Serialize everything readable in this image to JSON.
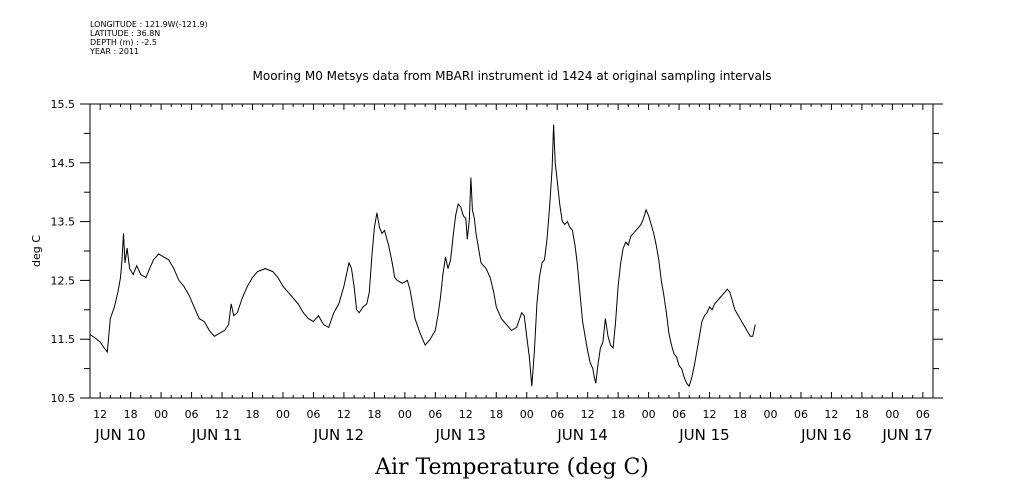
{
  "meta": {
    "longitude": "LONGITUDE : 121.9W(-121.9)",
    "latitude": "LATITUDE : 36.8N",
    "depth": "DEPTH (m) : -2.5",
    "year": "YEAR : 2011"
  },
  "chart_data": {
    "type": "line",
    "title": "Mooring M0 Metsys data from MBARI instrument id 1424 at original sampling intervals",
    "xlabel": "Air Temperature (deg C)",
    "ylabel": "deg C",
    "ylim": [
      10.5,
      15.5
    ],
    "yticks": [
      "10.5",
      "11.5",
      "12.5",
      "13.5",
      "14.5",
      "15.5"
    ],
    "x_unit": "hours since 2011-06-10 00:00",
    "xlim": [
      10,
      176
    ],
    "hour_ticks": [
      {
        "t": 12,
        "label": "12"
      },
      {
        "t": 18,
        "label": "18"
      },
      {
        "t": 24,
        "label": "00"
      },
      {
        "t": 30,
        "label": "06"
      },
      {
        "t": 36,
        "label": "12"
      },
      {
        "t": 42,
        "label": "18"
      },
      {
        "t": 48,
        "label": "00"
      },
      {
        "t": 54,
        "label": "06"
      },
      {
        "t": 60,
        "label": "12"
      },
      {
        "t": 66,
        "label": "18"
      },
      {
        "t": 72,
        "label": "00"
      },
      {
        "t": 78,
        "label": "06"
      },
      {
        "t": 84,
        "label": "12"
      },
      {
        "t": 90,
        "label": "18"
      },
      {
        "t": 96,
        "label": "00"
      },
      {
        "t": 102,
        "label": "06"
      },
      {
        "t": 108,
        "label": "12"
      },
      {
        "t": 114,
        "label": "18"
      },
      {
        "t": 120,
        "label": "00"
      },
      {
        "t": 126,
        "label": "06"
      },
      {
        "t": 132,
        "label": "12"
      },
      {
        "t": 138,
        "label": "18"
      },
      {
        "t": 144,
        "label": "00"
      },
      {
        "t": 150,
        "label": "06"
      },
      {
        "t": 156,
        "label": "12"
      },
      {
        "t": 162,
        "label": "18"
      },
      {
        "t": 168,
        "label": "00"
      },
      {
        "t": 174,
        "label": "06"
      }
    ],
    "day_labels": [
      {
        "t": 16,
        "label": "JUN 10"
      },
      {
        "t": 35,
        "label": "JUN 11"
      },
      {
        "t": 59,
        "label": "JUN 12"
      },
      {
        "t": 83,
        "label": "JUN 13"
      },
      {
        "t": 107,
        "label": "JUN 14"
      },
      {
        "t": 131,
        "label": "JUN 15"
      },
      {
        "t": 155,
        "label": "JUN 16"
      },
      {
        "t": 171,
        "label": "JUN 17"
      }
    ],
    "series": [
      {
        "points": [
          [
            10.0,
            11.58
          ],
          [
            11.0,
            11.52
          ],
          [
            12.0,
            11.45
          ],
          [
            12.8,
            11.35
          ],
          [
            13.4,
            11.28
          ],
          [
            14.0,
            11.85
          ],
          [
            14.8,
            12.05
          ],
          [
            15.5,
            12.3
          ],
          [
            16.0,
            12.55
          ],
          [
            16.3,
            12.85
          ],
          [
            16.6,
            13.3
          ],
          [
            16.9,
            12.8
          ],
          [
            17.3,
            13.05
          ],
          [
            17.8,
            12.7
          ],
          [
            18.5,
            12.6
          ],
          [
            19.2,
            12.75
          ],
          [
            20.0,
            12.6
          ],
          [
            21.0,
            12.55
          ],
          [
            22.0,
            12.75
          ],
          [
            22.5,
            12.85
          ],
          [
            23.5,
            12.95
          ],
          [
            24.5,
            12.9
          ],
          [
            25.5,
            12.85
          ],
          [
            26.5,
            12.7
          ],
          [
            27.5,
            12.5
          ],
          [
            28.5,
            12.4
          ],
          [
            29.5,
            12.25
          ],
          [
            30.5,
            12.05
          ],
          [
            31.5,
            11.85
          ],
          [
            32.5,
            11.8
          ],
          [
            33.5,
            11.65
          ],
          [
            34.5,
            11.55
          ],
          [
            35.5,
            11.6
          ],
          [
            36.5,
            11.65
          ],
          [
            37.3,
            11.75
          ],
          [
            37.8,
            12.1
          ],
          [
            38.3,
            11.9
          ],
          [
            39.0,
            11.95
          ],
          [
            40.0,
            12.2
          ],
          [
            41.0,
            12.4
          ],
          [
            42.0,
            12.55
          ],
          [
            43.0,
            12.65
          ],
          [
            44.5,
            12.7
          ],
          [
            46.0,
            12.65
          ],
          [
            47.0,
            12.55
          ],
          [
            48.0,
            12.4
          ],
          [
            49.0,
            12.3
          ],
          [
            50.0,
            12.2
          ],
          [
            51.0,
            12.1
          ],
          [
            52.0,
            11.95
          ],
          [
            53.0,
            11.85
          ],
          [
            54.0,
            11.8
          ],
          [
            55.0,
            11.9
          ],
          [
            56.0,
            11.75
          ],
          [
            57.0,
            11.7
          ],
          [
            58.0,
            11.95
          ],
          [
            59.0,
            12.1
          ],
          [
            60.0,
            12.4
          ],
          [
            61.0,
            12.8
          ],
          [
            61.5,
            12.7
          ],
          [
            62.0,
            12.4
          ],
          [
            62.5,
            12.0
          ],
          [
            63.0,
            11.95
          ],
          [
            63.8,
            12.05
          ],
          [
            64.5,
            12.1
          ],
          [
            65.0,
            12.3
          ],
          [
            65.5,
            12.9
          ],
          [
            66.0,
            13.4
          ],
          [
            66.5,
            13.65
          ],
          [
            67.0,
            13.4
          ],
          [
            67.5,
            13.3
          ],
          [
            68.0,
            13.35
          ],
          [
            68.8,
            13.1
          ],
          [
            69.5,
            12.8
          ],
          [
            70.0,
            12.55
          ],
          [
            70.5,
            12.5
          ],
          [
            71.5,
            12.45
          ],
          [
            72.5,
            12.5
          ],
          [
            73.0,
            12.35
          ],
          [
            73.5,
            12.1
          ],
          [
            74.0,
            11.85
          ],
          [
            75.0,
            11.6
          ],
          [
            76.0,
            11.4
          ],
          [
            77.0,
            11.5
          ],
          [
            78.0,
            11.65
          ],
          [
            78.5,
            11.9
          ],
          [
            79.0,
            12.2
          ],
          [
            79.5,
            12.6
          ],
          [
            80.0,
            12.9
          ],
          [
            80.5,
            12.7
          ],
          [
            81.0,
            12.85
          ],
          [
            81.5,
            13.25
          ],
          [
            82.0,
            13.6
          ],
          [
            82.5,
            13.8
          ],
          [
            83.0,
            13.75
          ],
          [
            83.5,
            13.6
          ],
          [
            84.0,
            13.55
          ],
          [
            84.3,
            13.2
          ],
          [
            84.7,
            13.55
          ],
          [
            85.0,
            14.25
          ],
          [
            85.3,
            13.7
          ],
          [
            85.7,
            13.55
          ],
          [
            86.0,
            13.3
          ],
          [
            86.5,
            13.05
          ],
          [
            87.0,
            12.8
          ],
          [
            87.5,
            12.75
          ],
          [
            88.0,
            12.7
          ],
          [
            88.8,
            12.55
          ],
          [
            89.5,
            12.3
          ],
          [
            90.0,
            12.05
          ],
          [
            91.0,
            11.85
          ],
          [
            92.0,
            11.75
          ],
          [
            93.0,
            11.65
          ],
          [
            94.0,
            11.7
          ],
          [
            95.0,
            11.95
          ],
          [
            95.5,
            11.9
          ],
          [
            96.0,
            11.55
          ],
          [
            96.5,
            11.2
          ],
          [
            97.0,
            10.7
          ],
          [
            97.5,
            11.3
          ],
          [
            98.0,
            12.1
          ],
          [
            98.5,
            12.55
          ],
          [
            99.0,
            12.8
          ],
          [
            99.5,
            12.85
          ],
          [
            100.0,
            13.2
          ],
          [
            100.5,
            13.75
          ],
          [
            101.0,
            14.4
          ],
          [
            101.3,
            15.15
          ],
          [
            101.6,
            14.5
          ],
          [
            102.0,
            14.2
          ],
          [
            102.5,
            13.8
          ],
          [
            103.0,
            13.5
          ],
          [
            103.5,
            13.45
          ],
          [
            104.0,
            13.5
          ],
          [
            104.5,
            13.4
          ],
          [
            105.0,
            13.35
          ],
          [
            105.5,
            13.1
          ],
          [
            106.0,
            12.75
          ],
          [
            106.5,
            12.25
          ],
          [
            107.0,
            11.8
          ],
          [
            107.5,
            11.55
          ],
          [
            108.0,
            11.3
          ],
          [
            108.5,
            11.1
          ],
          [
            109.0,
            11.0
          ],
          [
            109.3,
            10.85
          ],
          [
            109.6,
            10.75
          ],
          [
            110.0,
            11.05
          ],
          [
            110.5,
            11.35
          ],
          [
            111.0,
            11.45
          ],
          [
            111.5,
            11.85
          ],
          [
            112.0,
            11.55
          ],
          [
            112.5,
            11.4
          ],
          [
            113.0,
            11.35
          ],
          [
            113.5,
            11.8
          ],
          [
            114.0,
            12.4
          ],
          [
            114.5,
            12.8
          ],
          [
            115.0,
            13.05
          ],
          [
            115.5,
            13.15
          ],
          [
            116.0,
            13.1
          ],
          [
            116.5,
            13.25
          ],
          [
            117.0,
            13.3
          ],
          [
            117.5,
            13.35
          ],
          [
            118.0,
            13.4
          ],
          [
            118.5,
            13.45
          ],
          [
            119.0,
            13.55
          ],
          [
            119.5,
            13.7
          ],
          [
            120.0,
            13.6
          ],
          [
            120.5,
            13.45
          ],
          [
            121.0,
            13.3
          ],
          [
            121.5,
            13.1
          ],
          [
            122.0,
            12.85
          ],
          [
            122.5,
            12.5
          ],
          [
            123.0,
            12.25
          ],
          [
            123.5,
            11.95
          ],
          [
            124.0,
            11.6
          ],
          [
            124.5,
            11.4
          ],
          [
            125.0,
            11.25
          ],
          [
            125.5,
            11.2
          ],
          [
            126.0,
            11.05
          ],
          [
            126.5,
            11.0
          ],
          [
            127.0,
            10.85
          ],
          [
            127.5,
            10.75
          ],
          [
            128.0,
            10.7
          ],
          [
            128.5,
            10.85
          ],
          [
            129.0,
            11.05
          ],
          [
            129.5,
            11.3
          ],
          [
            130.0,
            11.55
          ],
          [
            130.5,
            11.8
          ],
          [
            131.0,
            11.9
          ],
          [
            131.5,
            11.95
          ],
          [
            132.0,
            12.05
          ],
          [
            132.5,
            12.0
          ],
          [
            133.0,
            12.1
          ],
          [
            133.5,
            12.15
          ],
          [
            134.0,
            12.2
          ],
          [
            134.5,
            12.25
          ],
          [
            135.0,
            12.3
          ],
          [
            135.5,
            12.35
          ],
          [
            136.0,
            12.3
          ],
          [
            136.5,
            12.15
          ],
          [
            137.0,
            12.0
          ],
          [
            138.0,
            11.85
          ],
          [
            139.0,
            11.7
          ],
          [
            140.0,
            11.55
          ],
          [
            140.5,
            11.55
          ],
          [
            141.0,
            11.75
          ]
        ]
      }
    ]
  }
}
